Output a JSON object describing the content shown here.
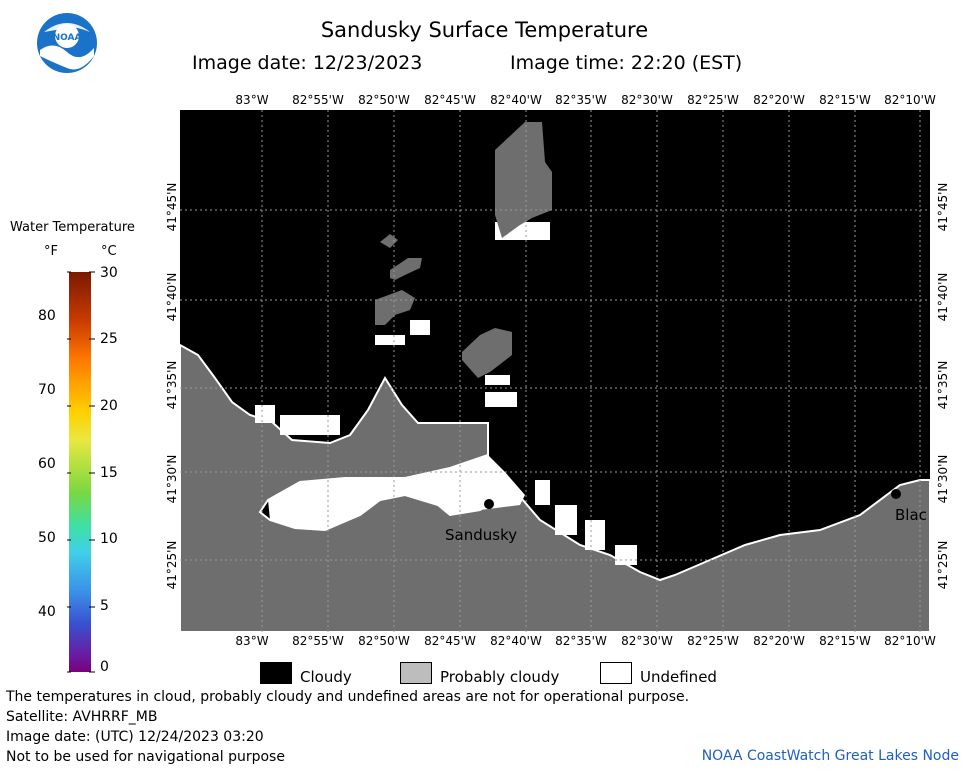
{
  "header": {
    "title": "Sandusky Surface Temperature",
    "image_date": "Image date: 12/23/2023",
    "image_time": "Image time: 22:20 (EST)",
    "logo_text": "NOAA"
  },
  "map": {
    "lon_labels": [
      "83°W",
      "82°55'W",
      "82°50'W",
      "82°45'W",
      "82°40'W",
      "82°35'W",
      "82°30'W",
      "82°25'W",
      "82°20'W",
      "82°15'W",
      "82°10'W"
    ],
    "lat_labels": [
      "41°45'N",
      "41°40'N",
      "41°35'N",
      "41°30'N",
      "41°25'N"
    ],
    "cities": [
      {
        "name": "Sandusky"
      },
      {
        "name": "Blac"
      }
    ],
    "colors": {
      "cloudy": "#000000",
      "probably_cloudy": "#6e6e6e",
      "undefined": "#ffffff"
    }
  },
  "colorbar": {
    "title": "Water Temperature",
    "unit_f": "°F",
    "unit_c": "°C",
    "f_ticks": [
      "80",
      "70",
      "60",
      "50",
      "40"
    ],
    "c_ticks": [
      "30",
      "25",
      "20",
      "15",
      "10",
      "5",
      "0"
    ]
  },
  "legend": {
    "cloudy": "Cloudy",
    "probably_cloudy": "Probably cloudy",
    "undefined": "Undefined"
  },
  "footer": {
    "note": "The temperatures in cloud, probably cloudy and undefined areas are not for operational purpose.",
    "satellite": "Satellite: AVHRRF_MB",
    "utc_date": "Image date: (UTC) 12/24/2023  03:20",
    "navigation": "Not to be used for navigational purpose",
    "credit": "NOAA CoastWatch Great Lakes Node"
  }
}
